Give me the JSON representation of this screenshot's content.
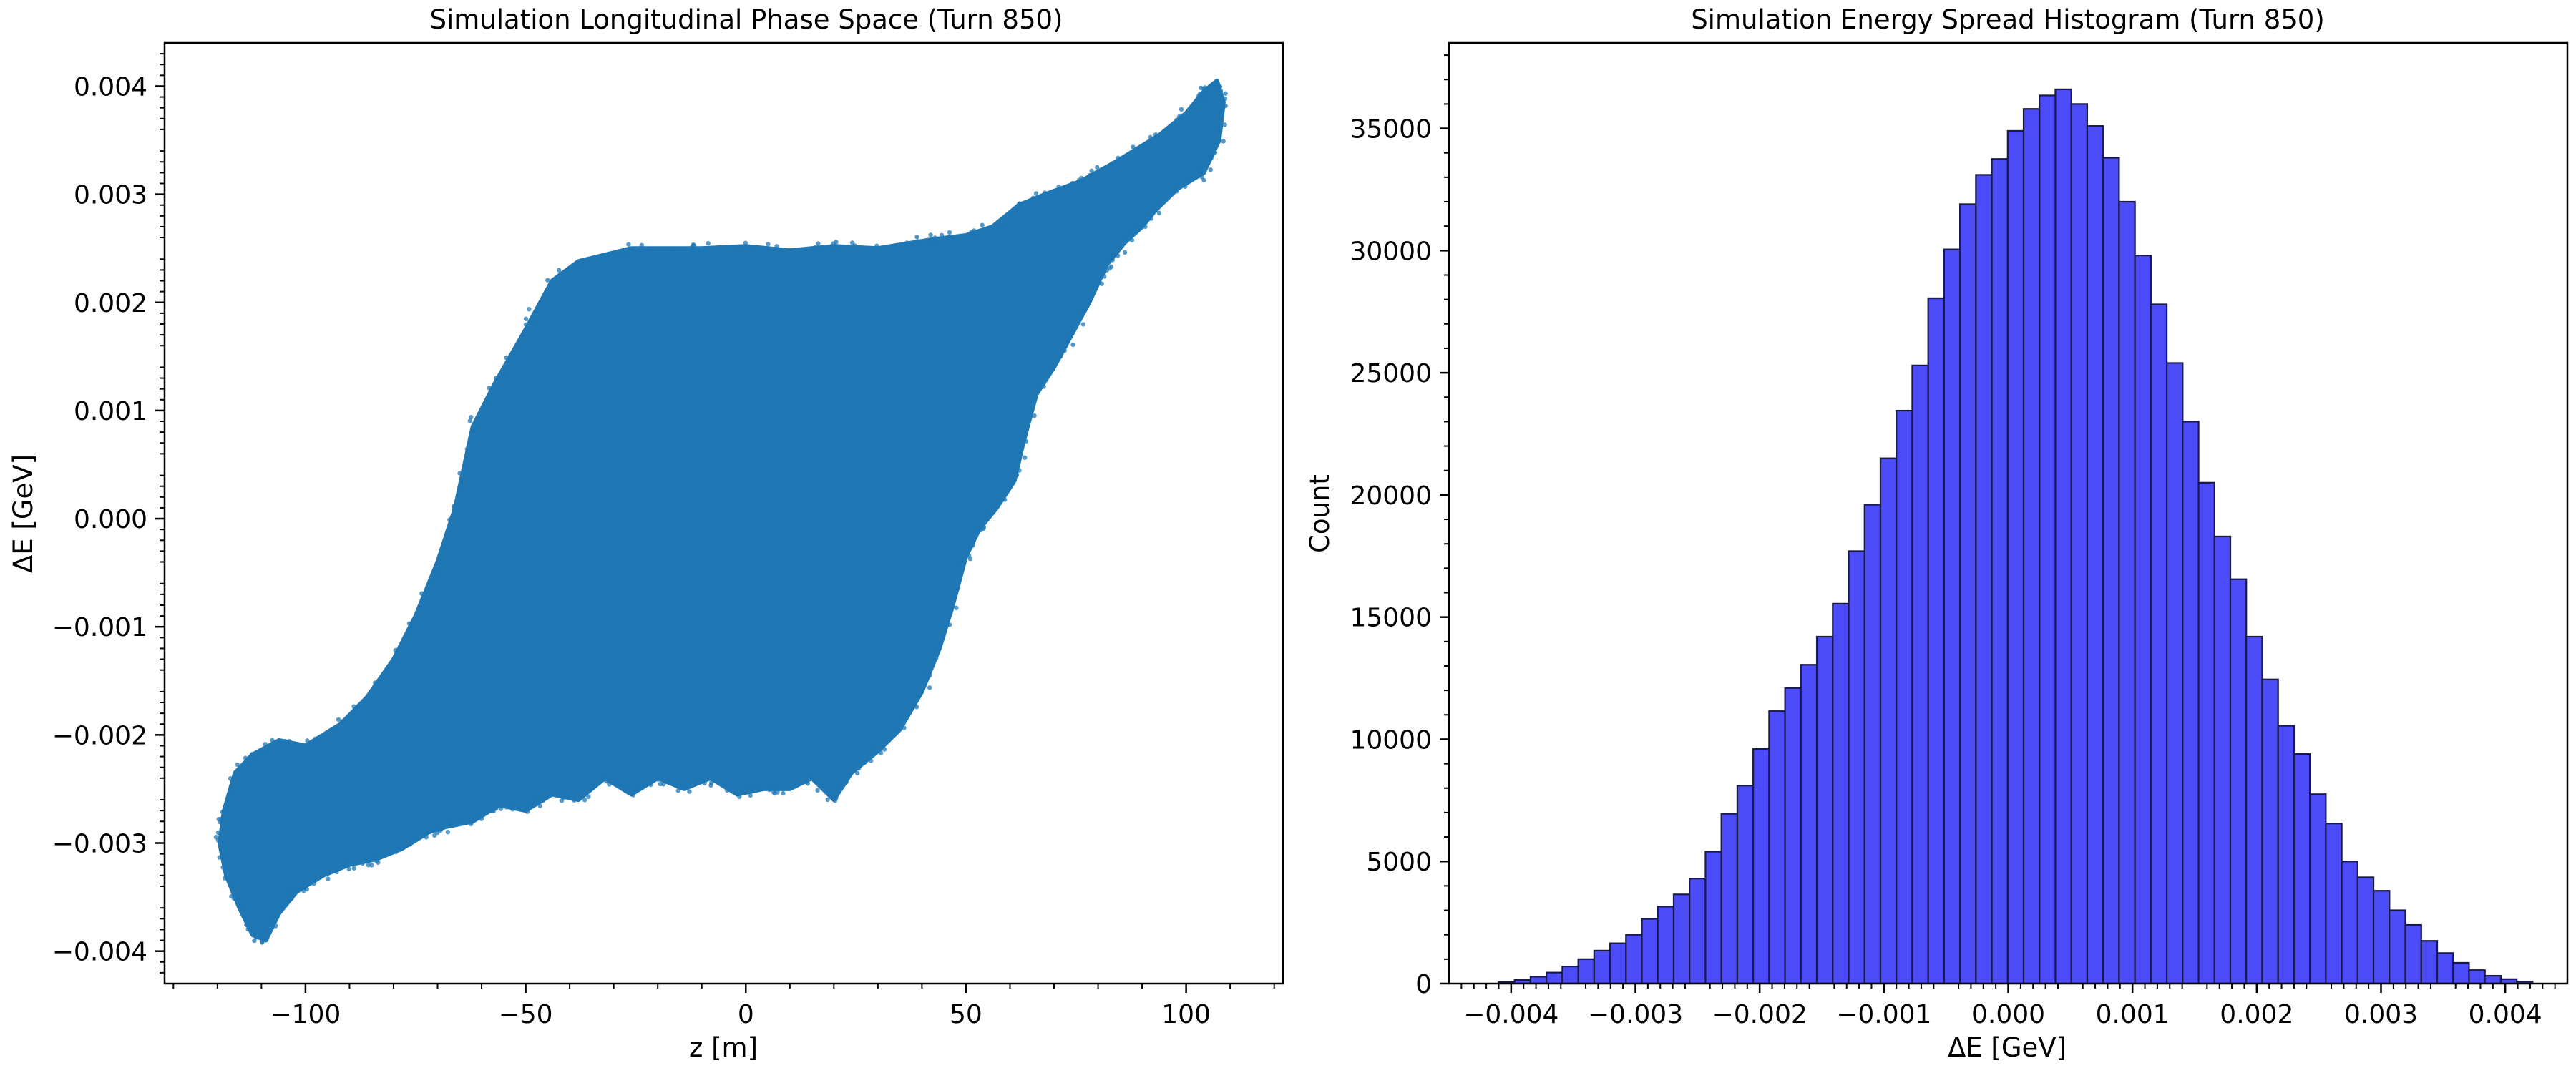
{
  "figure": {
    "background": "#ffffff"
  },
  "chart_data": [
    {
      "type": "scatter",
      "title": "Simulation Longitudinal Phase Space (Turn 850)",
      "xlabel": "z [m]",
      "ylabel": "ΔE [GeV]",
      "xlim": [
        -132,
        122
      ],
      "ylim": [
        -0.0043,
        0.0044
      ],
      "x_ticks": [
        -100,
        -50,
        0,
        50,
        100
      ],
      "x_tick_labels": [
        "−100",
        "−50",
        "0",
        "50",
        "100"
      ],
      "y_ticks": [
        -0.004,
        -0.003,
        -0.002,
        -0.001,
        0.0,
        0.001,
        0.002,
        0.003,
        0.004
      ],
      "y_tick_labels": [
        "−0.004",
        "−0.003",
        "−0.002",
        "−0.001",
        "0.000",
        "0.001",
        "0.002",
        "0.003",
        "0.004"
      ],
      "color": "#1f77b4",
      "grid": false,
      "distribution_outline": {
        "description_points_z_dE": [
          [
            -118.5,
            -0.0027
          ],
          [
            -116,
            -0.00235
          ],
          [
            -112,
            -0.00218
          ],
          [
            -106,
            -0.00205
          ],
          [
            -100,
            -0.0021
          ],
          [
            -92,
            -0.0019
          ],
          [
            -86,
            -0.00165
          ],
          [
            -80,
            -0.0013
          ],
          [
            -75,
            -0.0009
          ],
          [
            -70,
            -0.0004
          ],
          [
            -66,
            0.0001
          ],
          [
            -62,
            0.00085
          ],
          [
            -57,
            0.00125
          ],
          [
            -50,
            0.00175
          ],
          [
            -44,
            0.0022
          ],
          [
            -38,
            0.00238
          ],
          [
            -26,
            0.0025
          ],
          [
            -20,
            0.0025
          ],
          [
            -10,
            0.0025
          ],
          [
            0,
            0.00252
          ],
          [
            10,
            0.00248
          ],
          [
            20,
            0.00252
          ],
          [
            30,
            0.0025
          ],
          [
            42,
            0.00258
          ],
          [
            50,
            0.00262
          ],
          [
            56,
            0.0027
          ],
          [
            62,
            0.0029
          ],
          [
            68,
            0.003
          ],
          [
            76,
            0.00312
          ],
          [
            84,
            0.0033
          ],
          [
            94,
            0.00355
          ],
          [
            100,
            0.00375
          ],
          [
            104,
            0.00395
          ],
          [
            107,
            0.00405
          ],
          [
            108.5,
            0.00385
          ],
          [
            107.5,
            0.0035
          ],
          [
            104,
            0.0032
          ],
          [
            98,
            0.00305
          ],
          [
            93,
            0.00285
          ],
          [
            90,
            0.0027
          ],
          [
            86,
            0.00255
          ],
          [
            82,
            0.00235
          ],
          [
            78,
            0.002
          ],
          [
            74,
            0.0017
          ],
          [
            70,
            0.0014
          ],
          [
            66,
            0.00115
          ],
          [
            63,
            0.0007
          ],
          [
            61,
            0.00035
          ],
          [
            57,
            0.0001
          ],
          [
            53,
            -0.0001
          ],
          [
            50,
            -0.00035
          ],
          [
            47,
            -0.0008
          ],
          [
            44,
            -0.0012
          ],
          [
            40,
            -0.0016
          ],
          [
            35,
            -0.00195
          ],
          [
            30,
            -0.00215
          ],
          [
            24,
            -0.00235
          ],
          [
            20,
            -0.0026
          ],
          [
            15,
            -0.0024
          ],
          [
            10,
            -0.0025
          ],
          [
            4,
            -0.0025
          ],
          [
            -2,
            -0.00255
          ],
          [
            -8,
            -0.0024
          ],
          [
            -14,
            -0.0025
          ],
          [
            -20,
            -0.0024
          ],
          [
            -26,
            -0.00255
          ],
          [
            -32,
            -0.0024
          ],
          [
            -38,
            -0.0026
          ],
          [
            -44,
            -0.00255
          ],
          [
            -50,
            -0.0027
          ],
          [
            -56,
            -0.00265
          ],
          [
            -62,
            -0.0028
          ],
          [
            -68,
            -0.00285
          ],
          [
            -72,
            -0.0029
          ],
          [
            -78,
            -0.00305
          ],
          [
            -84,
            -0.00315
          ],
          [
            -90,
            -0.0032
          ],
          [
            -96,
            -0.0033
          ],
          [
            -102,
            -0.00345
          ],
          [
            -106,
            -0.00365
          ],
          [
            -109,
            -0.0039
          ],
          [
            -112,
            -0.00385
          ],
          [
            -115,
            -0.0036
          ],
          [
            -118,
            -0.0033
          ],
          [
            -119.5,
            -0.003
          ]
        ]
      }
    },
    {
      "type": "bar",
      "title": "Simulation Energy Spread Histogram (Turn 850)",
      "xlabel": "ΔE [GeV]",
      "ylabel": "Count",
      "xlim": [
        -0.0045,
        0.0045
      ],
      "ylim": [
        0,
        38500
      ],
      "x_ticks": [
        -0.004,
        -0.003,
        -0.002,
        -0.001,
        0.0,
        0.001,
        0.002,
        0.003,
        0.004
      ],
      "x_tick_labels": [
        "−0.004",
        "−0.003",
        "−0.002",
        "−0.001",
        "0.000",
        "0.001",
        "0.002",
        "0.003",
        "0.004"
      ],
      "y_ticks": [
        0,
        5000,
        10000,
        15000,
        20000,
        25000,
        30000,
        35000
      ],
      "y_tick_labels": [
        "0",
        "5000",
        "10000",
        "15000",
        "20000",
        "25000",
        "30000",
        "35000"
      ],
      "bar_color": "#4b4bf8",
      "edge_color": "#1a1a4a",
      "grid": false,
      "bin_start": -0.0041,
      "bin_width": 0.000128,
      "values": [
        60,
        150,
        280,
        450,
        700,
        1000,
        1350,
        1650,
        2000,
        2650,
        3150,
        3650,
        4300,
        5400,
        6950,
        8100,
        9600,
        11150,
        12100,
        13050,
        14200,
        15550,
        17700,
        19600,
        21500,
        23450,
        25300,
        28050,
        30050,
        31900,
        33100,
        33750,
        34900,
        35800,
        36350,
        36600,
        36000,
        35100,
        33800,
        32000,
        29800,
        27800,
        25400,
        23000,
        20500,
        18300,
        16550,
        14200,
        12450,
        10550,
        9400,
        7750,
        6550,
        5000,
        4350,
        3800,
        3000,
        2400,
        1750,
        1250,
        850,
        550,
        320,
        180,
        80
      ]
    }
  ]
}
